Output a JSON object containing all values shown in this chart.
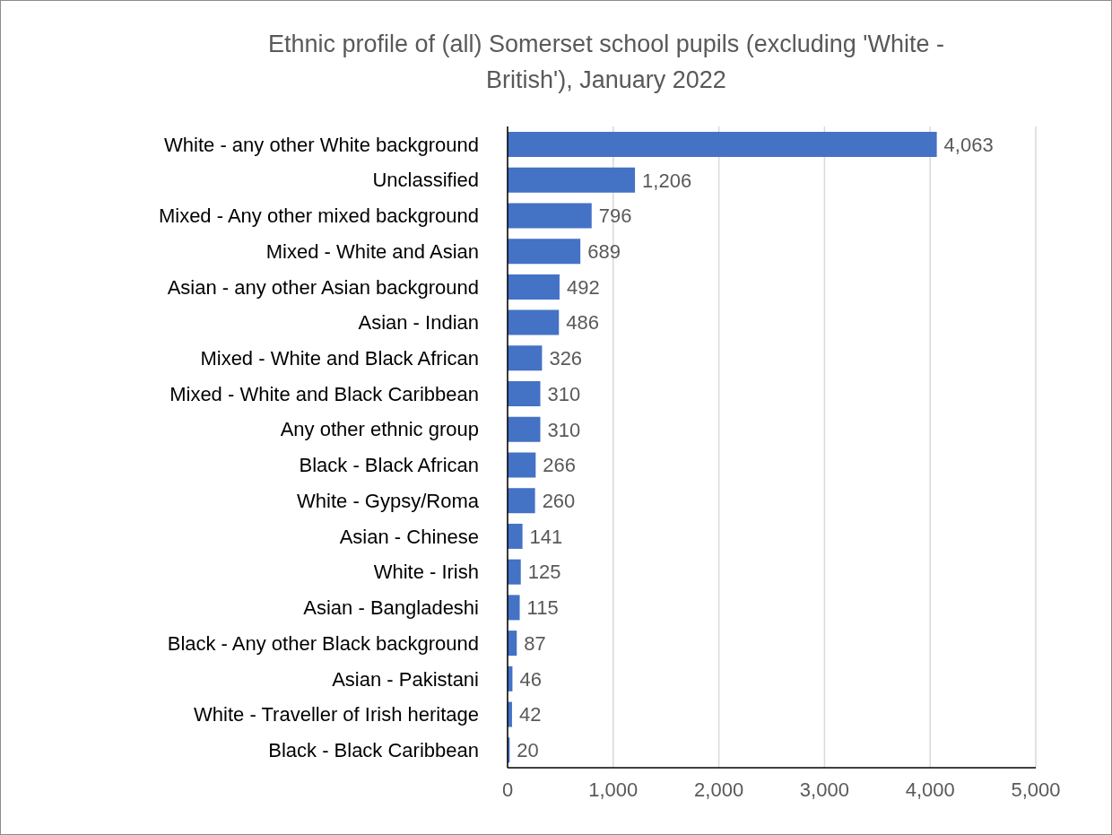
{
  "chart_data": {
    "type": "bar",
    "orientation": "horizontal",
    "title": "Ethnic profile of (all) Somerset school pupils (excluding 'White - British'), January 2022",
    "categories": [
      "White - any other White background",
      "Unclassified",
      "Mixed - Any other mixed background",
      "Mixed - White and Asian",
      "Asian - any other Asian background",
      "Asian - Indian",
      "Mixed - White and Black African",
      "Mixed - White and Black Caribbean",
      "Any other ethnic group",
      "Black - Black African",
      "White - Gypsy/Roma",
      "Asian - Chinese",
      "White - Irish",
      "Asian - Bangladeshi",
      "Black - Any other Black background",
      "Asian - Pakistani",
      "White - Traveller of Irish heritage",
      "Black - Black Caribbean"
    ],
    "values": [
      4063,
      1206,
      796,
      689,
      492,
      486,
      326,
      310,
      310,
      266,
      260,
      141,
      125,
      115,
      87,
      46,
      42,
      20
    ],
    "value_labels": [
      "4,063",
      "1,206",
      "796",
      "689",
      "492",
      "486",
      "326",
      "310",
      "310",
      "266",
      "260",
      "141",
      "125",
      "115",
      "87",
      "46",
      "42",
      "20"
    ],
    "color": "#4472c4",
    "xlim": [
      0,
      5000
    ],
    "xticks": [
      0,
      {
        "value": 1000,
        "label": "1,000"
      },
      {
        "value": 2000,
        "label": "2,000"
      },
      {
        "value": 3000,
        "label": "3,000"
      },
      {
        "value": 4000,
        "label": "4,000"
      },
      {
        "value": 5000,
        "label": "5,000"
      }
    ],
    "grid": "x",
    "legend": false
  }
}
